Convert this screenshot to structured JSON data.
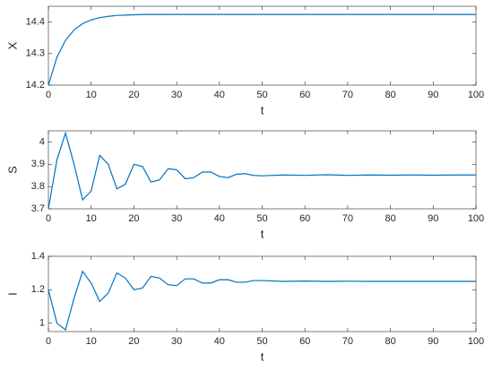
{
  "chart_data": [
    {
      "type": "line",
      "ylabel": "X",
      "xlabel": "t",
      "color": "#0072bd",
      "x": [
        0,
        2,
        4,
        6,
        8,
        10,
        12,
        14,
        16,
        18,
        20,
        22,
        24,
        26,
        28,
        30,
        32,
        34,
        36,
        38,
        40,
        42,
        44,
        46,
        48,
        50,
        55,
        60,
        65,
        70,
        75,
        80,
        85,
        90,
        95,
        100
      ],
      "values": [
        14.2,
        14.289,
        14.342,
        14.375,
        14.395,
        14.407,
        14.414,
        14.418,
        14.421,
        14.422,
        14.423,
        14.424,
        14.424,
        14.424,
        14.424,
        14.424,
        14.424,
        14.424,
        14.424,
        14.424,
        14.424,
        14.424,
        14.424,
        14.424,
        14.424,
        14.424,
        14.424,
        14.424,
        14.424,
        14.424,
        14.424,
        14.424,
        14.424,
        14.424,
        14.424,
        14.424
      ],
      "xlim": [
        0,
        100
      ],
      "xticks": [
        0,
        10,
        20,
        30,
        40,
        50,
        60,
        70,
        80,
        90,
        100
      ],
      "ylim": [
        14.2,
        14.45
      ],
      "yticks": [
        14.2,
        14.3,
        14.4
      ]
    },
    {
      "type": "line",
      "ylabel": "S",
      "xlabel": "t",
      "color": "#0072bd",
      "x": [
        0,
        2,
        4,
        6,
        8,
        10,
        12,
        14,
        16,
        18,
        20,
        22,
        24,
        26,
        28,
        30,
        32,
        34,
        36,
        38,
        40,
        42,
        44,
        46,
        48,
        50,
        55,
        60,
        65,
        70,
        75,
        80,
        85,
        90,
        95,
        100
      ],
      "values": [
        3.7,
        3.92,
        4.04,
        3.9,
        3.74,
        3.78,
        3.94,
        3.9,
        3.79,
        3.81,
        3.9,
        3.89,
        3.82,
        3.83,
        3.88,
        3.875,
        3.835,
        3.84,
        3.865,
        3.865,
        3.845,
        3.84,
        3.855,
        3.858,
        3.85,
        3.848,
        3.852,
        3.85,
        3.853,
        3.85,
        3.852,
        3.851,
        3.852,
        3.851,
        3.852,
        3.852
      ],
      "xlim": [
        0,
        100
      ],
      "xticks": [
        0,
        10,
        20,
        30,
        40,
        50,
        60,
        70,
        80,
        90,
        100
      ],
      "ylim": [
        3.7,
        4.05
      ],
      "yticks": [
        3.7,
        3.8,
        3.9,
        4
      ]
    },
    {
      "type": "line",
      "ylabel": "I",
      "xlabel": "t",
      "color": "#0072bd",
      "x": [
        0,
        2,
        4,
        6,
        8,
        10,
        12,
        14,
        16,
        18,
        20,
        22,
        24,
        26,
        28,
        30,
        32,
        34,
        36,
        38,
        40,
        42,
        44,
        46,
        48,
        50,
        55,
        60,
        65,
        70,
        75,
        80,
        85,
        90,
        95,
        100
      ],
      "values": [
        1.2,
        1.0,
        0.96,
        1.15,
        1.31,
        1.24,
        1.13,
        1.18,
        1.3,
        1.27,
        1.2,
        1.21,
        1.28,
        1.27,
        1.23,
        1.225,
        1.265,
        1.265,
        1.24,
        1.24,
        1.26,
        1.26,
        1.245,
        1.245,
        1.255,
        1.255,
        1.25,
        1.252,
        1.25,
        1.251,
        1.25,
        1.25,
        1.25,
        1.25,
        1.25,
        1.25
      ],
      "xlim": [
        0,
        100
      ],
      "xticks": [
        0,
        10,
        20,
        30,
        40,
        50,
        60,
        70,
        80,
        90,
        100
      ],
      "ylim": [
        0.95,
        1.4
      ],
      "yticks": [
        1,
        1.2,
        1.4
      ]
    }
  ]
}
